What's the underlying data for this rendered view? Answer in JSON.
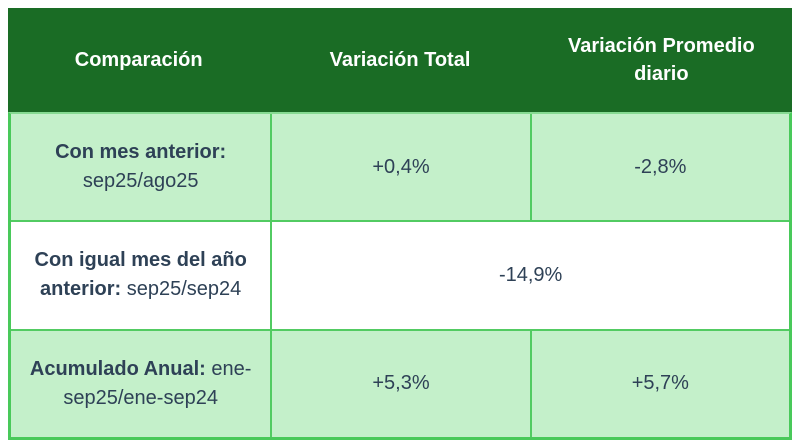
{
  "colors": {
    "header_bg": "#1a6c25",
    "row_green_bg": "#c4f0ca",
    "row_white_bg": "#ffffff",
    "border_green": "#49c95a",
    "header_text": "#ffffff",
    "body_text": "#2e4156"
  },
  "table": {
    "headers": [
      "Comparación",
      "Variación Total",
      "Variación Promedio diario"
    ],
    "rows": [
      {
        "label": {
          "line1_bold": "Con mes anterior:",
          "line2": "sep25/ago25"
        },
        "total": "+0,4%",
        "daily": "-2,8%"
      },
      {
        "label": {
          "line1_bold": "Con igual mes del año",
          "line2_bold": "anterior:",
          "line2_rest": " sep25/sep24"
        },
        "merged_value": "-14,9%"
      },
      {
        "label": {
          "line1_bold": "Acumulado Anual:",
          "line1_rest": " ene-",
          "line2": "sep25/ene-sep24"
        },
        "total": "+5,3%",
        "daily": "+5,7%"
      }
    ]
  },
  "chart_data": {
    "type": "table",
    "columns": [
      "Comparación",
      "Variación Total",
      "Variación Promedio diario"
    ],
    "rows": [
      [
        "Con mes anterior: sep25/ago25",
        "+0,4%",
        "-2,8%"
      ],
      [
        "Con igual mes del año anterior: sep25/sep24",
        "-14,9%",
        "-14,9%"
      ],
      [
        "Acumulado Anual: ene-sep25/ene-sep24",
        "+5,3%",
        "+5,7%"
      ]
    ],
    "merged_cells": [
      {
        "row": 1,
        "columns": [
          1,
          2
        ],
        "value": "-14,9%"
      }
    ],
    "legend_position": "none",
    "grid": true
  }
}
